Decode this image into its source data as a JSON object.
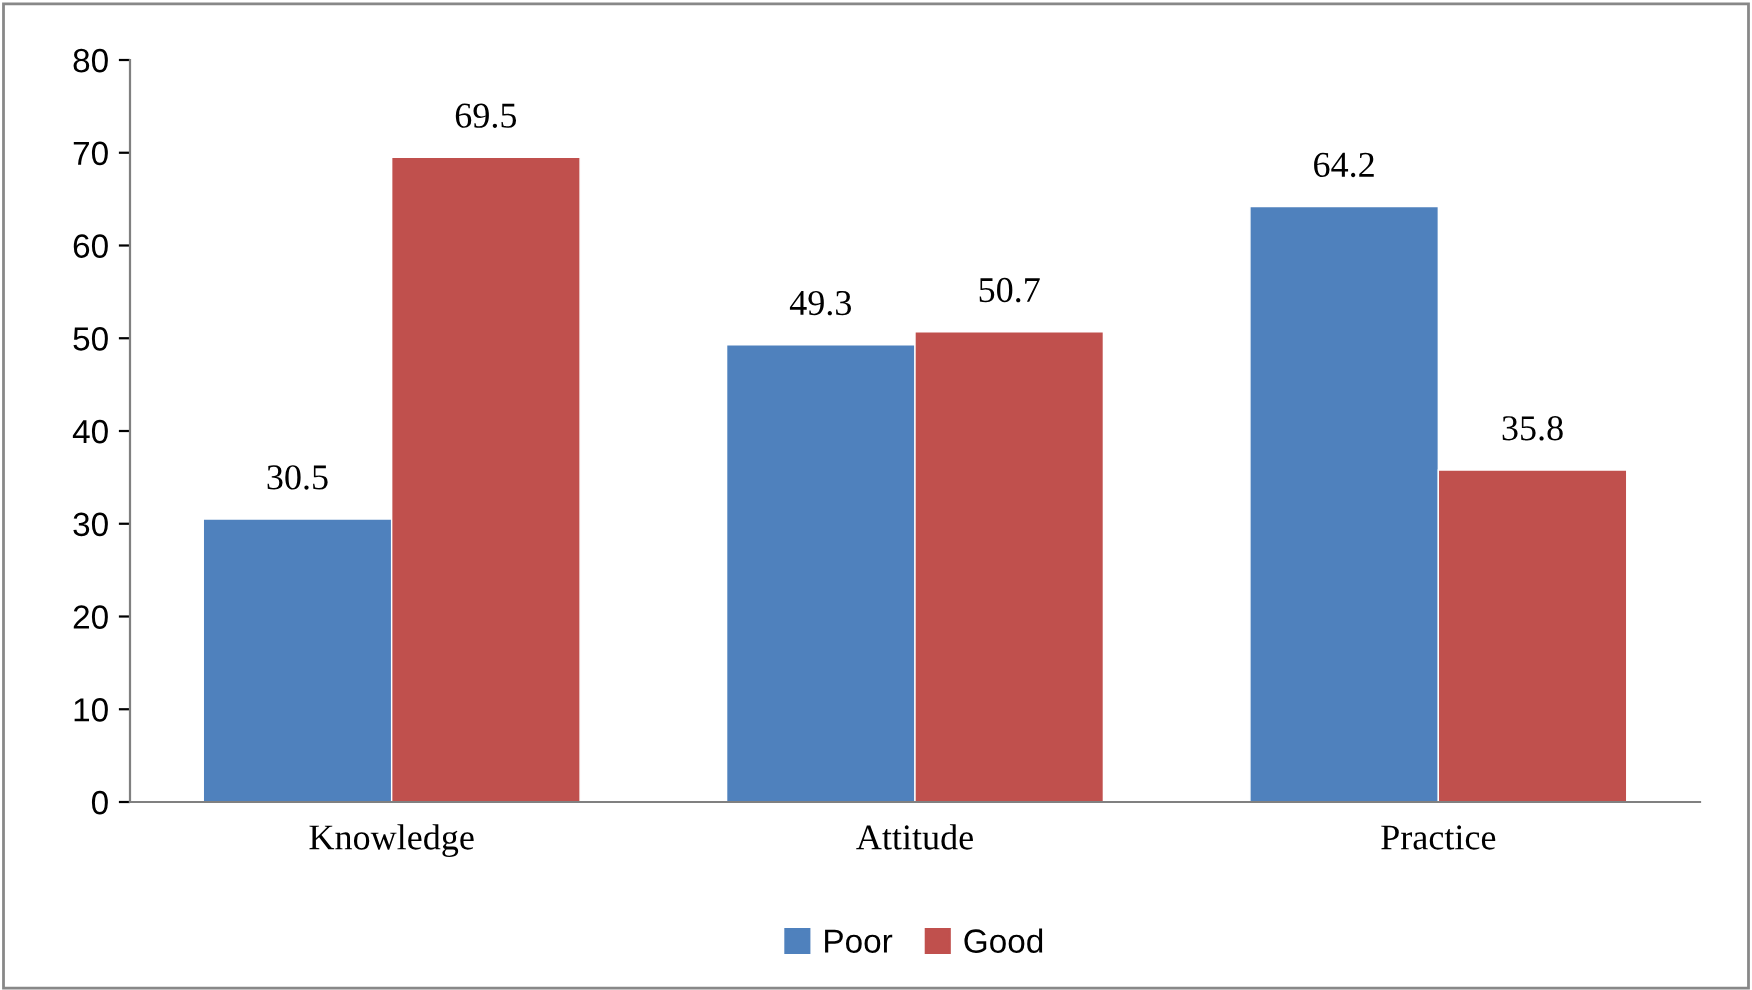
{
  "chart_data": {
    "type": "bar",
    "categories": [
      "Knowledge",
      "Attitude",
      "Practice"
    ],
    "series": [
      {
        "name": "Poor",
        "color": "#4f81bd",
        "values": [
          30.5,
          49.3,
          64.2
        ]
      },
      {
        "name": "Good",
        "color": "#c0504d",
        "values": [
          69.5,
          50.7,
          35.8
        ]
      }
    ],
    "ylim": [
      0,
      80
    ],
    "yticks": [
      0,
      10,
      20,
      30,
      40,
      50,
      60,
      70,
      80
    ],
    "grid": false,
    "legend": "bottom",
    "data_labels": true
  }
}
